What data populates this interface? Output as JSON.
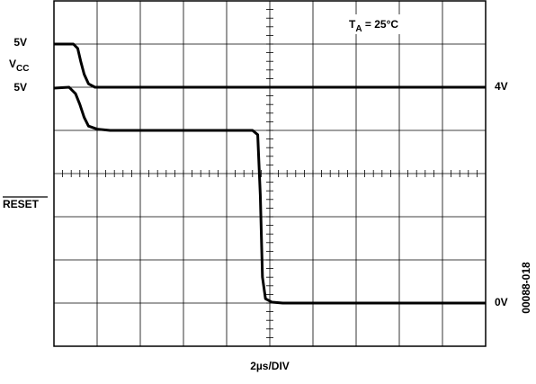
{
  "chart_data": {
    "type": "line",
    "xlim": [
      0,
      10
    ],
    "ylim": [
      0,
      8
    ],
    "xticks": [
      0,
      1,
      2,
      3,
      4,
      5,
      6,
      7,
      8,
      9,
      10
    ],
    "yticks": [
      0,
      1,
      2,
      3,
      4,
      5,
      6,
      7,
      8
    ],
    "grid": true,
    "series": [
      {
        "color": "#000000",
        "x": [
          0,
          0.45,
          0.55,
          0.62,
          0.7,
          0.8,
          0.95,
          10
        ],
        "values": [
          7,
          7,
          6.9,
          6.6,
          6.3,
          6.08,
          6.0,
          6.0
        ]
      },
      {
        "color": "#000000",
        "x": [
          0,
          0.35,
          0.5,
          0.6,
          0.7,
          0.8,
          1.0,
          1.3,
          4.6,
          4.72,
          4.78,
          4.83,
          4.9,
          5.05,
          5.3,
          10
        ],
        "values": [
          5.98,
          6.0,
          5.85,
          5.6,
          5.3,
          5.1,
          5.03,
          5.0,
          5.0,
          4.9,
          3.5,
          1.6,
          1.1,
          1.02,
          1.0,
          1.0
        ]
      }
    ],
    "x_label": "2µs/DIV",
    "annotations": {
      "vcc_top": "5V",
      "vcc_name": {
        "main": "V",
        "sub": "CC"
      },
      "reset_top": "5V",
      "vcc_level": "4V",
      "reset_name": "RESET",
      "reset_level": "0V",
      "temperature": {
        "main": "T",
        "sub": "A",
        "rest": " = 25°C"
      },
      "figure_id": "00088-018"
    }
  }
}
